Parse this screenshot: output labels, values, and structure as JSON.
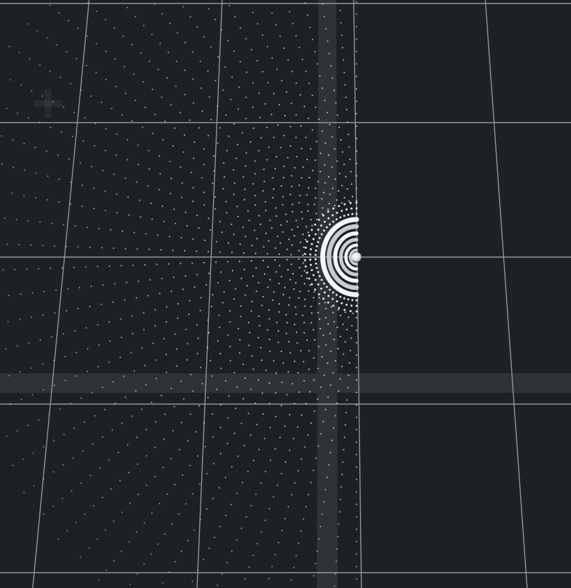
{
  "viewport": {
    "background": "#1d2024",
    "grid_color": "#b7bcc0",
    "axis_band_color": "#3a3f43",
    "point_color": "#e6e8ea",
    "sphere_color": "#f2f4f6"
  },
  "toolbar": {
    "add_icon": "plus-icon"
  },
  "scene": {
    "description_objects": [
      "grid-plane",
      "vertical-axis-band",
      "horizontal-axis-band",
      "radial-point-cloud",
      "concentric-sphere-source"
    ],
    "ring_count": 6,
    "ray_count": 22
  }
}
